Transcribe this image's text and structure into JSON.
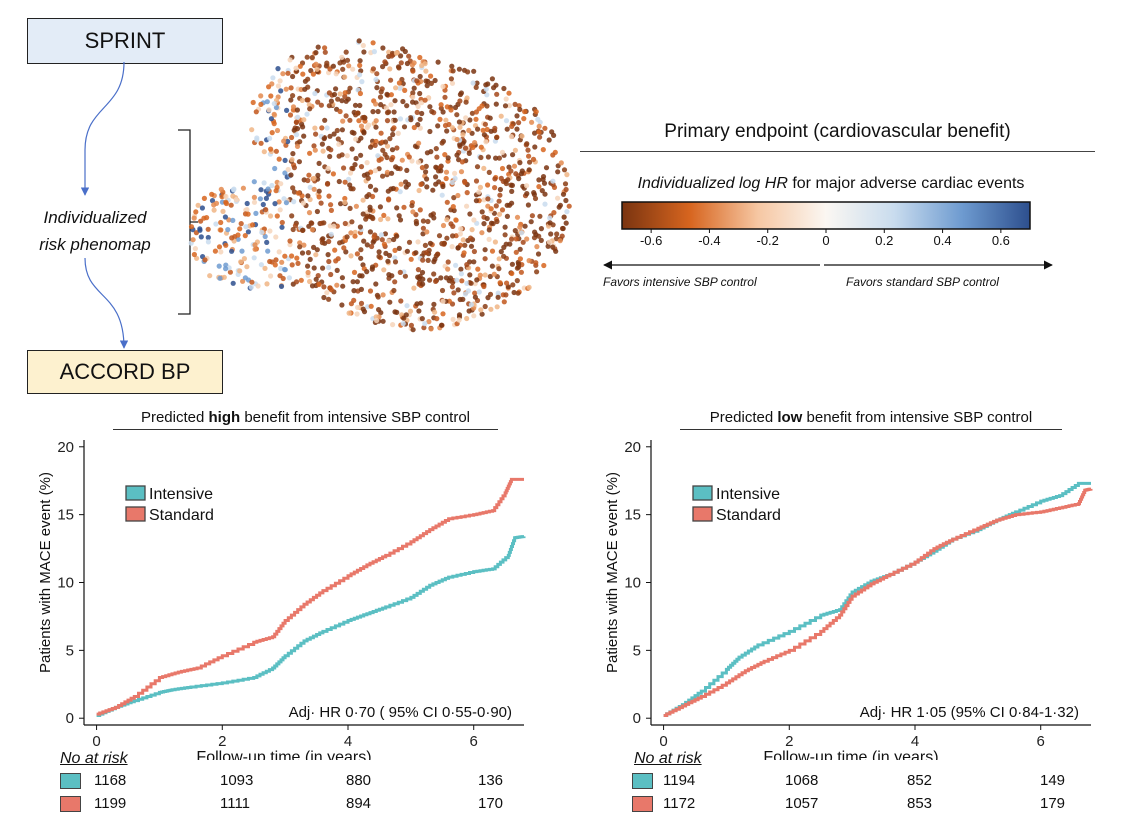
{
  "flow": {
    "top_box": "SPRINT",
    "bottom_box": "ACCORD BP",
    "phenomap_line1": "Individualized",
    "phenomap_line2": "risk phenomap",
    "top_box_color": "#e3ecf7",
    "bottom_box_color": "#fdf1cf",
    "arrow_color": "#4a6fc9"
  },
  "endpoint": {
    "title": "Primary endpoint (cardiovascular benefit)",
    "colorbar_title_italic": "Individualized log HR",
    "colorbar_title_rest": " for major adverse cardiac events",
    "colorbar_ticks": [
      "-0.6",
      "-0.4",
      "-0.2",
      "0",
      "0.2",
      "0.4",
      "0.6"
    ],
    "colorbar_range": [
      -0.7,
      0.7
    ],
    "colorbar_colors": [
      "#7a3410",
      "#d7651f",
      "#f6c7a3",
      "#fbf7f2",
      "#c9dcee",
      "#6e9bd0",
      "#2d4f8e"
    ],
    "favors_left": "Favors intensive SBP control",
    "favors_right": "Favors standard SBP control"
  },
  "chart_data": [
    {
      "type": "line",
      "title_pre": "Predicted ",
      "title_bold": "high",
      "title_post": " benefit from intensive SBP control",
      "ylabel": "Patients with MACE event (%)",
      "xlabel": "Follow-up time (in years)",
      "xlim": [
        -0.2,
        6.8
      ],
      "ylim": [
        -0.5,
        20.5
      ],
      "xticks": [
        0,
        2,
        4,
        6
      ],
      "yticks": [
        0,
        5,
        10,
        15,
        20
      ],
      "legend_placement": "top-left",
      "annotation": "Adj· HR 0·70 ( 95% CI 0·55-0·90)",
      "series": [
        {
          "name": "Intensive",
          "color": "#5bbfc3",
          "x": [
            0,
            0.3,
            0.6,
            1.0,
            1.2,
            1.5,
            2.0,
            2.5,
            2.8,
            3.0,
            3.3,
            3.6,
            4.0,
            4.3,
            4.6,
            5.0,
            5.3,
            5.6,
            6.0,
            6.3,
            6.55,
            6.65,
            6.8
          ],
          "y": [
            0.2,
            0.8,
            1.3,
            1.9,
            2.1,
            2.3,
            2.6,
            3.0,
            3.7,
            4.6,
            5.7,
            6.4,
            7.2,
            7.7,
            8.2,
            8.9,
            9.8,
            10.4,
            10.8,
            11.0,
            12.0,
            13.3,
            13.4
          ]
        },
        {
          "name": "Standard",
          "color": "#e8786a",
          "x": [
            0,
            0.3,
            0.6,
            1.0,
            1.3,
            1.6,
            2.0,
            2.5,
            2.8,
            3.0,
            3.3,
            3.6,
            4.0,
            4.3,
            4.6,
            5.0,
            5.3,
            5.6,
            6.0,
            6.3,
            6.5,
            6.6,
            6.8
          ],
          "y": [
            0.3,
            0.8,
            1.6,
            3.0,
            3.4,
            3.7,
            4.6,
            5.6,
            6.0,
            7.2,
            8.4,
            9.4,
            10.5,
            11.3,
            12.0,
            13.0,
            13.9,
            14.7,
            15.0,
            15.3,
            16.6,
            17.6,
            17.6
          ]
        }
      ],
      "risk_table": {
        "header": "No at risk",
        "rows": [
          {
            "series": "Intensive",
            "values": [
              "1168",
              "1093",
              "880",
              "136"
            ]
          },
          {
            "series": "Standard",
            "values": [
              "1199",
              "1111",
              "894",
              "170"
            ]
          }
        ]
      }
    },
    {
      "type": "line",
      "title_pre": "Predicted ",
      "title_bold": "low",
      "title_post": " benefit from intensive SBP control",
      "ylabel": "Patients with MACE event (%)",
      "xlabel": "Follow-up time (in years)",
      "xlim": [
        -0.2,
        6.8
      ],
      "ylim": [
        -0.5,
        20.5
      ],
      "xticks": [
        0,
        2,
        4,
        6
      ],
      "yticks": [
        0,
        5,
        10,
        15,
        20
      ],
      "legend_placement": "top-left",
      "annotation": "Adj· HR 1·05 (95% CI 0·84-1·32)",
      "series": [
        {
          "name": "Intensive",
          "color": "#5bbfc3",
          "x": [
            0,
            0.3,
            0.6,
            1.0,
            1.2,
            1.5,
            2.0,
            2.5,
            2.8,
            3.0,
            3.3,
            3.6,
            4.0,
            4.3,
            4.6,
            5.0,
            5.3,
            5.6,
            6.0,
            6.3,
            6.6,
            6.8
          ],
          "y": [
            0.2,
            1.0,
            2.0,
            3.6,
            4.5,
            5.4,
            6.4,
            7.6,
            8.0,
            9.3,
            10.1,
            10.6,
            11.5,
            12.3,
            13.2,
            13.9,
            14.6,
            15.2,
            16.0,
            16.4,
            17.3,
            17.3
          ]
        },
        {
          "name": "Standard",
          "color": "#e8786a",
          "x": [
            0,
            0.3,
            0.6,
            1.0,
            1.3,
            1.6,
            2.0,
            2.5,
            2.8,
            3.0,
            3.3,
            3.6,
            4.0,
            4.3,
            4.6,
            5.0,
            5.3,
            5.6,
            6.0,
            6.3,
            6.6,
            6.7,
            6.8
          ],
          "y": [
            0.2,
            0.9,
            1.6,
            2.6,
            3.5,
            4.2,
            5.0,
            6.4,
            7.6,
            9.0,
            9.9,
            10.6,
            11.5,
            12.5,
            13.2,
            14.0,
            14.6,
            15.0,
            15.2,
            15.5,
            15.8,
            16.8,
            16.9
          ]
        }
      ],
      "risk_table": {
        "header": "No at risk",
        "rows": [
          {
            "series": "Intensive",
            "values": [
              "1194",
              "1068",
              "852",
              "149"
            ]
          },
          {
            "series": "Standard",
            "values": [
              "1172",
              "1057",
              "853",
              "179"
            ]
          }
        ]
      }
    }
  ]
}
